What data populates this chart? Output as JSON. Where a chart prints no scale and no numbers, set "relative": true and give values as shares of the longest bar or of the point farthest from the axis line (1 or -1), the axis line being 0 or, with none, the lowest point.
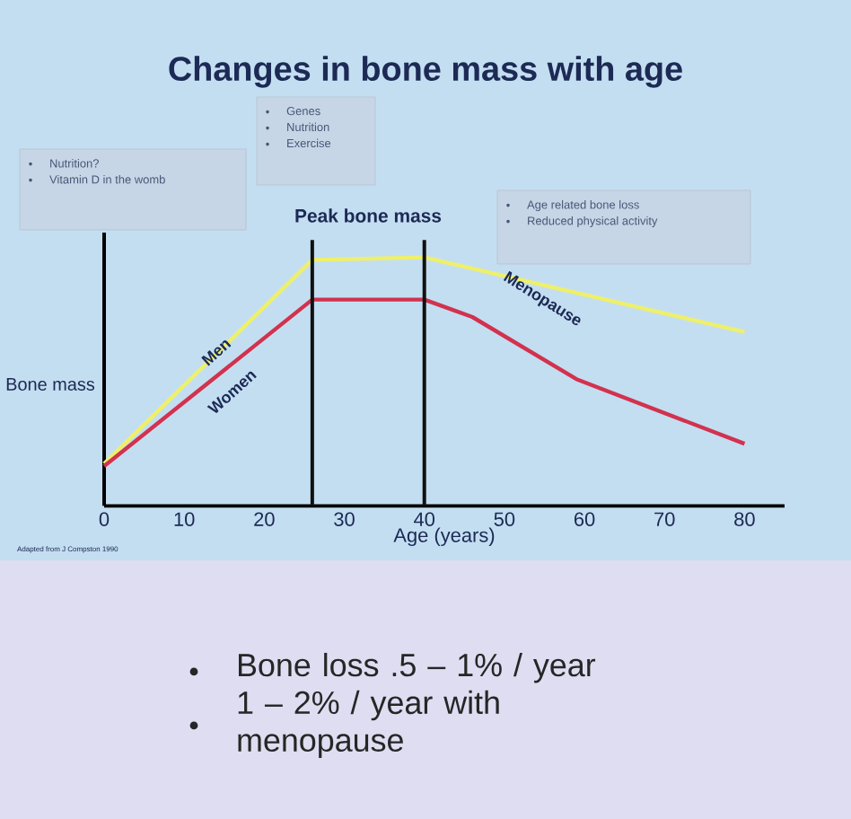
{
  "chart_data": {
    "type": "line",
    "title": "Changes in bone mass with age",
    "xlabel": "Age (years)",
    "ylabel": "Bone mass",
    "relative": true,
    "series": [
      {
        "name": "Men",
        "color": "#eef06a",
        "x": [
          0,
          26,
          40,
          80
        ],
        "values": [
          0.17,
          0.99,
          1.0,
          0.7
        ]
      },
      {
        "name": "Women",
        "color": "#d2324e",
        "x": [
          0,
          26,
          40,
          46,
          59,
          80
        ],
        "values": [
          0.16,
          0.83,
          0.83,
          0.76,
          0.51,
          0.25
        ]
      }
    ],
    "xlim": [
      0,
      85
    ],
    "xticks": [
      0,
      10,
      20,
      30,
      40,
      50,
      60,
      70,
      80
    ],
    "ref_lines": [
      {
        "axis": "x",
        "value": 26,
        "color": "#111111"
      },
      {
        "axis": "x",
        "value": 40,
        "color": "#111111"
      }
    ],
    "annotations": [
      "Nutrition?",
      "Vitamin D in the womb",
      "Genes",
      "Nutrition",
      "Exercise",
      "Peak bone mass",
      "Age related bone loss",
      "Reduced physical activity",
      "Menopause",
      "Adapted from J Compston 1990",
      "Bone loss .5 – 1% / year",
      "1 – 2% / year with menopause"
    ]
  }
}
